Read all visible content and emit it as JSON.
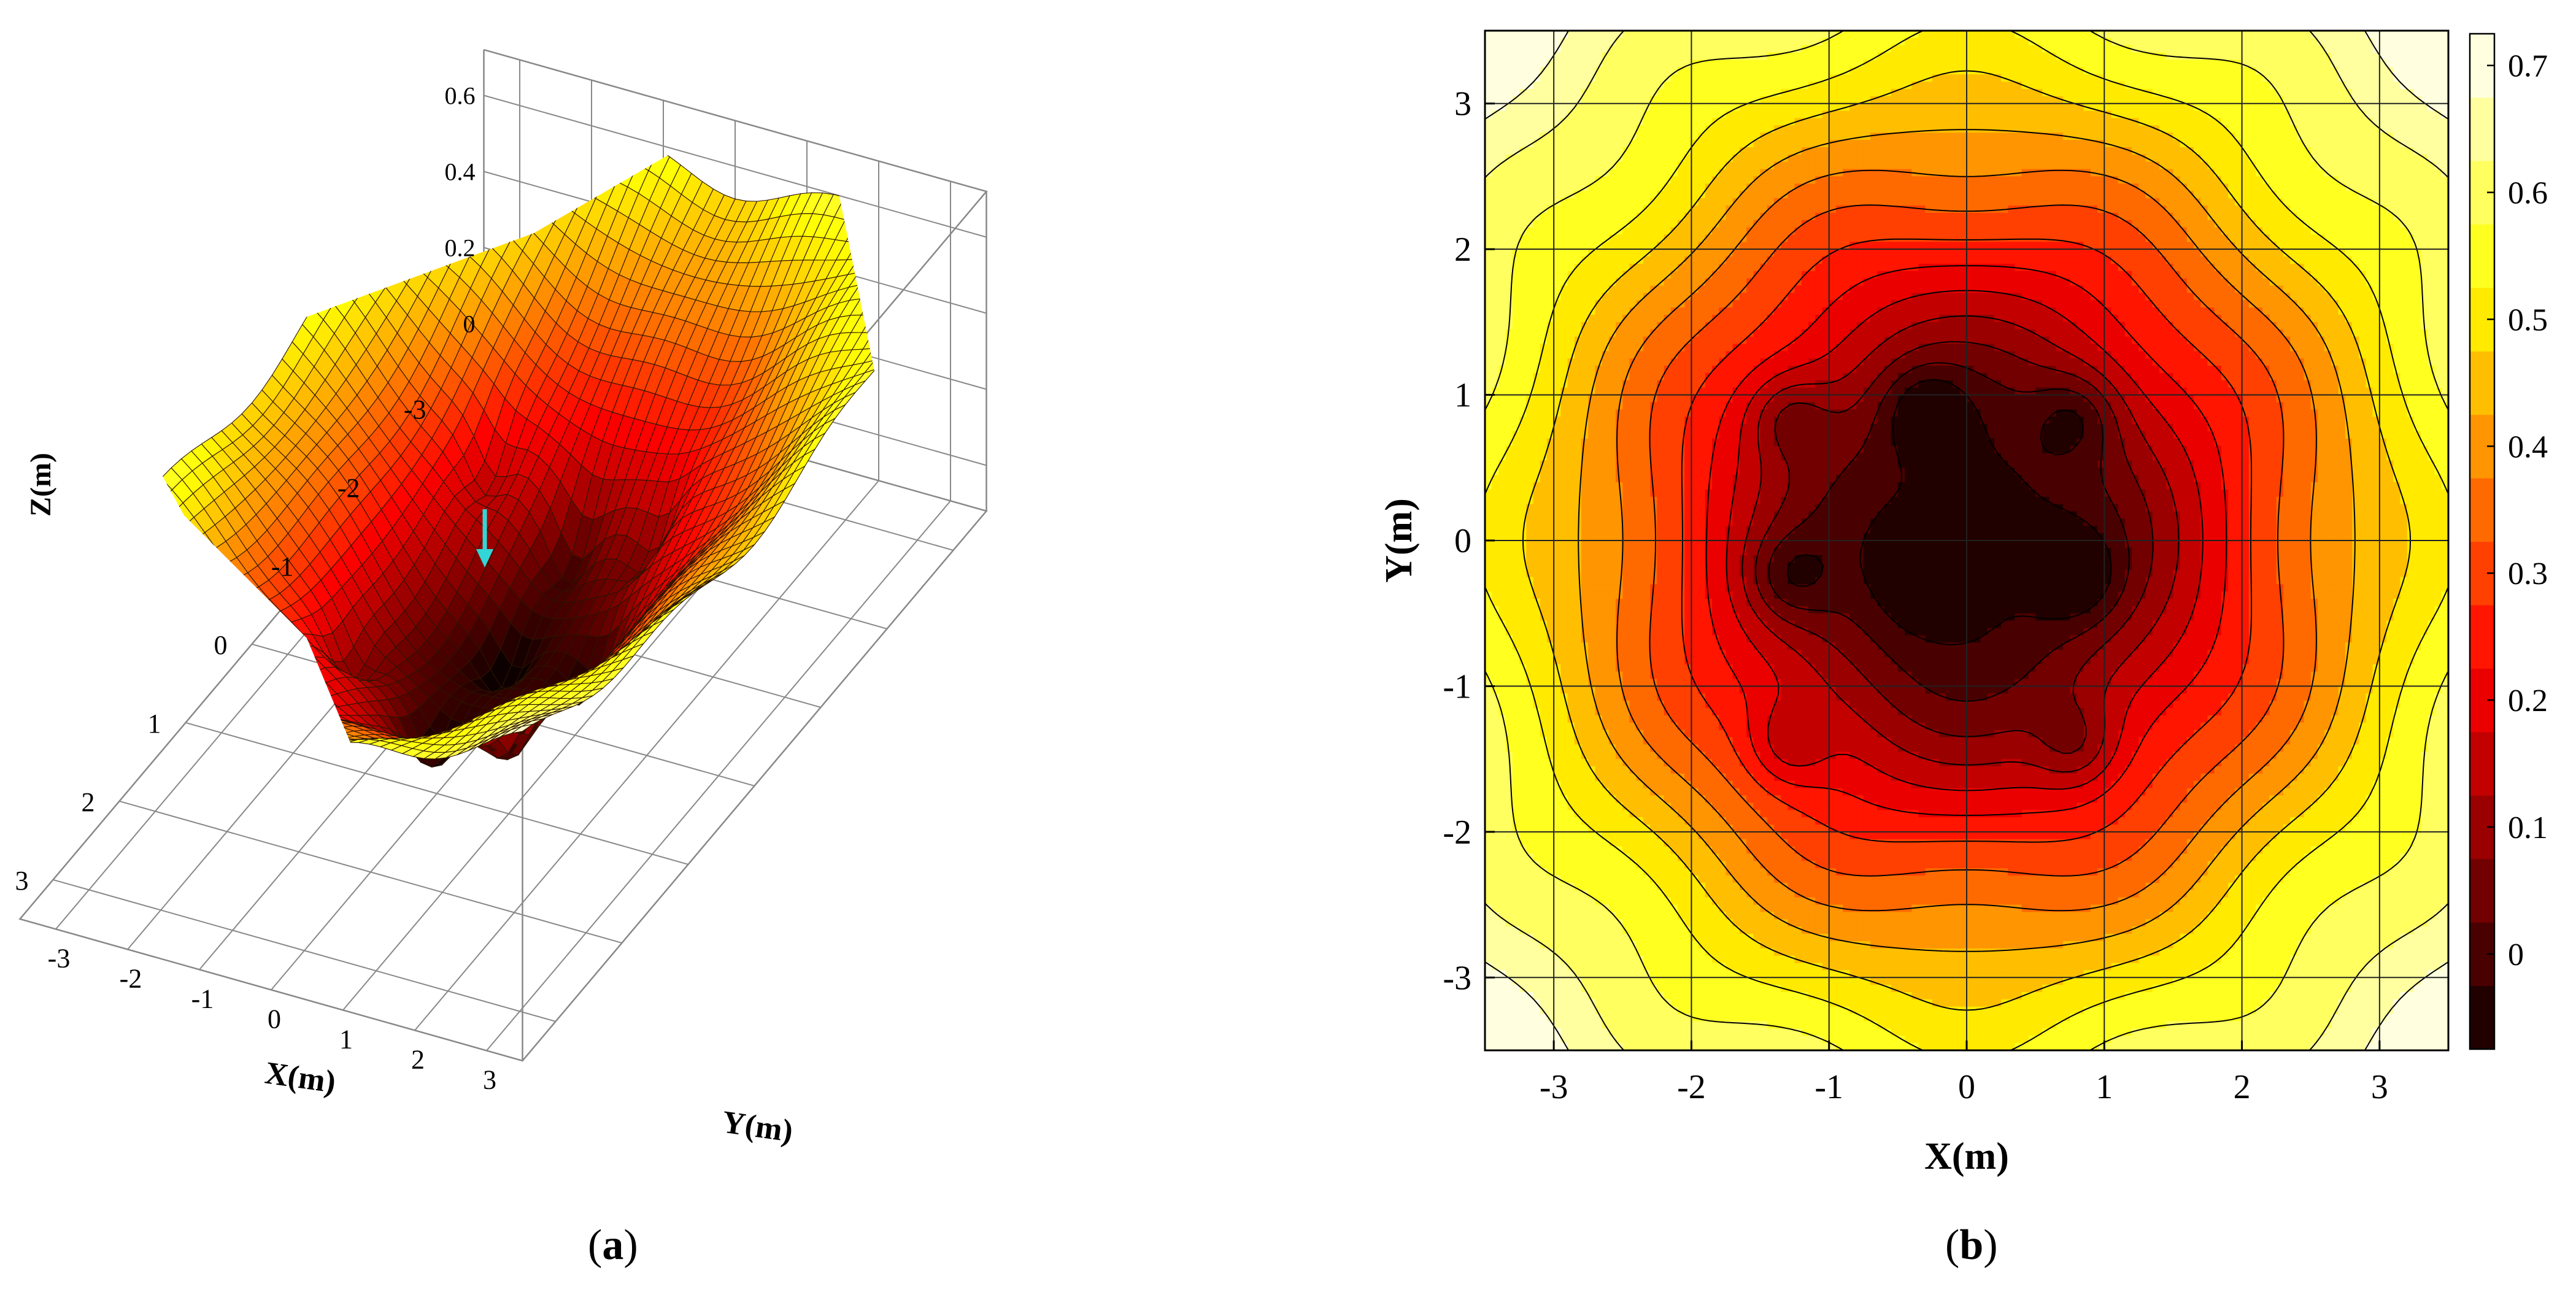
{
  "panel_labels": {
    "a": {
      "open": "(",
      "letter": "a",
      "close": ")"
    },
    "b": {
      "open": "(",
      "letter": "b",
      "close": ")"
    }
  },
  "chart_data": [
    {
      "panel": "a",
      "type": "surface3d",
      "title": "",
      "xlabel": "X(m)",
      "ylabel": "Y(m)",
      "zlabel": "Z(m)",
      "x_ticks": [
        "-3",
        "-2",
        "-1",
        "0",
        "1",
        "2",
        "3"
      ],
      "y_ticks": [
        "-3",
        "-2",
        "-1",
        "0",
        "1",
        "2",
        "3"
      ],
      "z_ticks": [
        "0",
        "0.2",
        "0.4",
        "0.6"
      ],
      "xlim": [
        -3.5,
        3.5
      ],
      "ylim": [
        -3.5,
        3.5
      ],
      "zlim": [
        -0.1,
        0.7
      ],
      "colormap": "hot",
      "grid": true,
      "surface_summary": "bowl-shaped basin, minima near center (~-0.07 m), rising to ~0.7 m at corners",
      "marker": {
        "type": "arrow",
        "color": "#33d6d6",
        "pointing": "down"
      }
    },
    {
      "panel": "b",
      "type": "contour",
      "title": "",
      "xlabel": "X(m)",
      "ylabel": "Y(m)",
      "x_ticks": [
        "-3",
        "-2",
        "-1",
        "0",
        "1",
        "2",
        "3"
      ],
      "y_ticks": [
        "-3",
        "-2",
        "-1",
        "0",
        "1",
        "2",
        "3"
      ],
      "xlim": [
        -3.5,
        3.5
      ],
      "ylim": [
        -3.5,
        3.5
      ],
      "grid": true,
      "colormap": "hot",
      "colorbar": {
        "min": -0.075,
        "max": 0.725,
        "ticks": [
          "0",
          "0.1",
          "0.2",
          "0.3",
          "0.4",
          "0.5",
          "0.6",
          "0.7"
        ],
        "levels": 16,
        "location": "right"
      },
      "minima": [
        {
          "x": -0.3,
          "y": -0.25,
          "z": -0.07
        },
        {
          "x": -0.3,
          "y": 0.9,
          "z": -0.05
        },
        {
          "x": 0.8,
          "y": -0.25,
          "z": -0.05
        },
        {
          "x": -1.3,
          "y": -0.25,
          "z": -0.03
        },
        {
          "x": -1.3,
          "y": 0.85,
          "z": -0.03
        },
        {
          "x": 0.8,
          "y": 0.85,
          "z": -0.03
        },
        {
          "x": 0.8,
          "y": -1.4,
          "z": -0.03
        },
        {
          "x": -1.3,
          "y": -1.4,
          "z": -0.02
        }
      ]
    }
  ]
}
